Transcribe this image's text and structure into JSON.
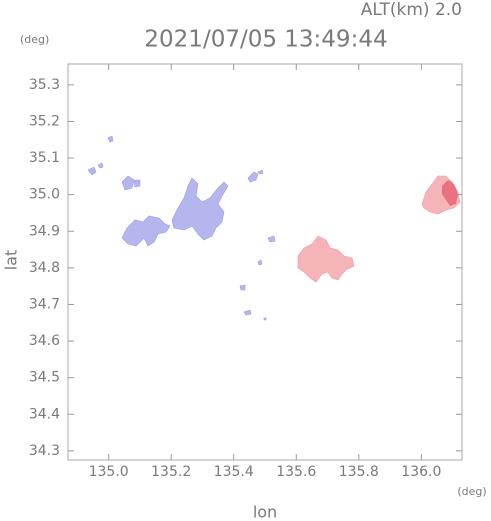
{
  "chart_data": {
    "type": "radar-map",
    "title": "2021/07/05 13:49:44",
    "altitude_label": "ALT(km) 2.0",
    "x_label": "lon",
    "y_label": "lat",
    "x_unit": "(deg)",
    "y_unit": "(deg)",
    "xlim": [
      134.87,
      136.13
    ],
    "ylim": [
      34.275,
      35.357
    ],
    "xticks": [
      {
        "value": 135,
        "label": "135.0"
      },
      135.2,
      135.4,
      135.6,
      135.8,
      {
        "value": 136,
        "label": "136.0"
      }
    ],
    "yticks": [
      34.3,
      34.4,
      34.5,
      34.6,
      34.7,
      34.8,
      34.9,
      {
        "value": 35,
        "label": "35.0"
      },
      35.1,
      35.2,
      35.3
    ],
    "grid": false
  }
}
